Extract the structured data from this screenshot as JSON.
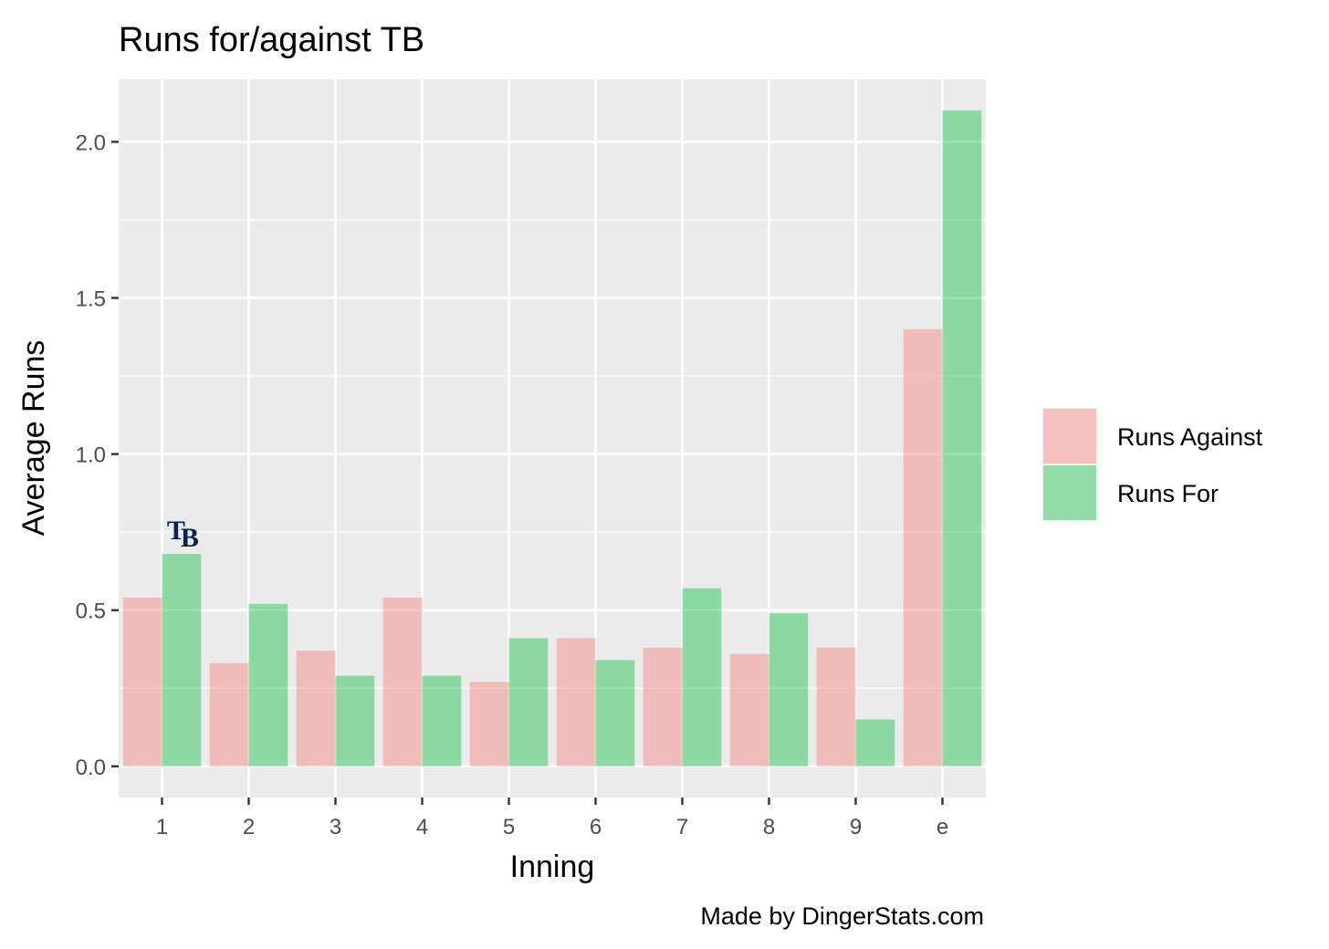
{
  "chart_data": {
    "type": "bar",
    "title": "Runs for/against TB",
    "xlabel": "Inning",
    "ylabel": "Average Runs",
    "caption": "Made by DingerStats.com",
    "categories": [
      "1",
      "2",
      "3",
      "4",
      "5",
      "6",
      "7",
      "8",
      "9",
      "e"
    ],
    "series": [
      {
        "name": "Runs Against",
        "color": "#f8766d",
        "values": [
          0.54,
          0.33,
          0.37,
          0.54,
          0.27,
          0.41,
          0.38,
          0.36,
          0.38,
          1.4
        ]
      },
      {
        "name": "Runs For",
        "color": "#00ba38",
        "values": [
          0.68,
          0.52,
          0.29,
          0.29,
          0.41,
          0.34,
          0.57,
          0.49,
          0.15,
          2.1
        ]
      }
    ],
    "ylim": [
      -0.1,
      2.2
    ],
    "yticks": [
      0.0,
      0.5,
      1.0,
      1.5,
      2.0
    ],
    "ytick_labels": [
      "0.0",
      "0.5",
      "1.0",
      "1.5",
      "2.0"
    ],
    "grid": true,
    "legend_position": "right",
    "logo": {
      "text": "TB",
      "category": "1",
      "color": "#0a2351"
    }
  }
}
